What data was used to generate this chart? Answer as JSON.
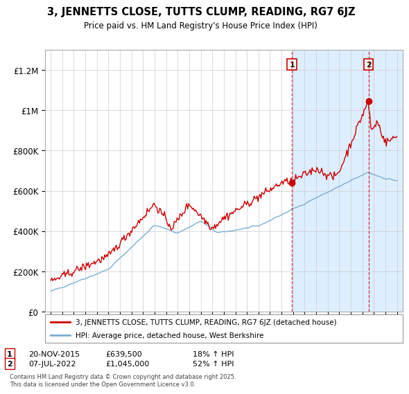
{
  "title": "3, JENNETTS CLOSE, TUTTS CLUMP, READING, RG7 6JZ",
  "subtitle": "Price paid vs. HM Land Registry's House Price Index (HPI)",
  "ylabel_ticks": [
    "£0",
    "£200K",
    "£400K",
    "£600K",
    "£800K",
    "£1M",
    "£1.2M"
  ],
  "ytick_values": [
    0,
    200000,
    400000,
    600000,
    800000,
    1000000,
    1200000
  ],
  "ylim": [
    0,
    1300000
  ],
  "xlim_start": 1994.5,
  "xlim_end": 2025.5,
  "sale1_x": 2015.9,
  "sale1_y": 639500,
  "sale1_label": "1",
  "sale1_date": "20-NOV-2015",
  "sale1_price": "£639,500",
  "sale1_hpi": "18% ↑ HPI",
  "sale2_x": 2022.55,
  "sale2_y": 1045000,
  "sale2_label": "2",
  "sale2_date": "07-JUL-2022",
  "sale2_price": "£1,045,000",
  "sale2_hpi": "52% ↑ HPI",
  "line_property_color": "#cc0000",
  "line_hpi_color": "#7aafd4",
  "background_color": "#ffffff",
  "chart_bg_color": "#ffffff",
  "highlight_bg_color": "#ddeeff",
  "grid_color": "#cccccc",
  "legend_property": "3, JENNETTS CLOSE, TUTTS CLUMP, READING, RG7 6JZ (detached house)",
  "legend_hpi": "HPI: Average price, detached house, West Berkshire",
  "footer": "Contains HM Land Registry data © Crown copyright and database right 2025.\nThis data is licensed under the Open Government Licence v3.0."
}
